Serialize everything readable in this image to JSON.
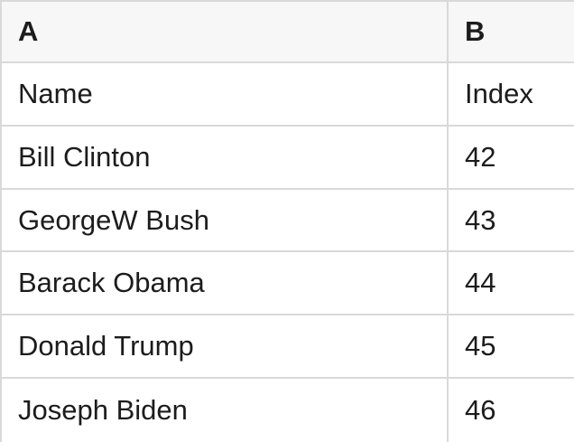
{
  "sheet": {
    "column_headers": [
      "A",
      "B"
    ],
    "field_labels": {
      "a": "Name",
      "b": "Index"
    },
    "rows": [
      {
        "a": "Name",
        "b": "Index"
      },
      {
        "a": "Bill Clinton",
        "b": "42"
      },
      {
        "a": "GeorgeW Bush",
        "b": "43"
      },
      {
        "a": "Barack Obama",
        "b": "44"
      },
      {
        "a": "Donald Trump",
        "b": "45"
      },
      {
        "a": "Joseph Biden",
        "b": "46"
      }
    ],
    "colors": {
      "header_background": "#f7f7f7",
      "row_background": "#ffffff",
      "grid_border": "#d9d9d9",
      "text": "#1c1c1c"
    }
  }
}
